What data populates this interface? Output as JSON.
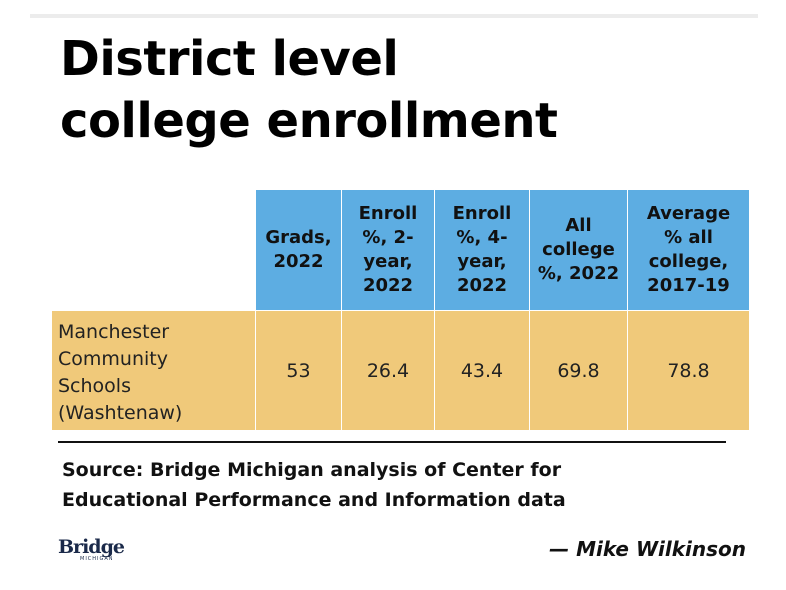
{
  "title": {
    "line1": "District level",
    "line2": "college enrollment"
  },
  "table": {
    "headers": [
      [
        "Grads,",
        "2022"
      ],
      [
        "Enroll",
        "%, 2-",
        "year,",
        "2022"
      ],
      [
        "Enroll",
        "%, 4-",
        "year,",
        "2022"
      ],
      [
        "All",
        "college",
        "%, 2022"
      ],
      [
        "Average",
        "% all",
        "college,",
        "2017-19"
      ]
    ],
    "row": {
      "label": [
        "Manchester",
        "Community",
        "Schools",
        "(Washtenaw)"
      ],
      "values": [
        "53",
        "26.4",
        "43.4",
        "69.8",
        "78.8"
      ]
    }
  },
  "source": {
    "line1": "Source: Bridge Michigan analysis of Center for",
    "line2": "Educational Performance and Information data"
  },
  "logo": {
    "text": "Bridge",
    "subtext": "MICHIGAN"
  },
  "byline": "— Mike Wilkinson",
  "colors": {
    "header_bg": "#5dade2",
    "row_bg": "#f0c97a",
    "text": "#111111"
  }
}
